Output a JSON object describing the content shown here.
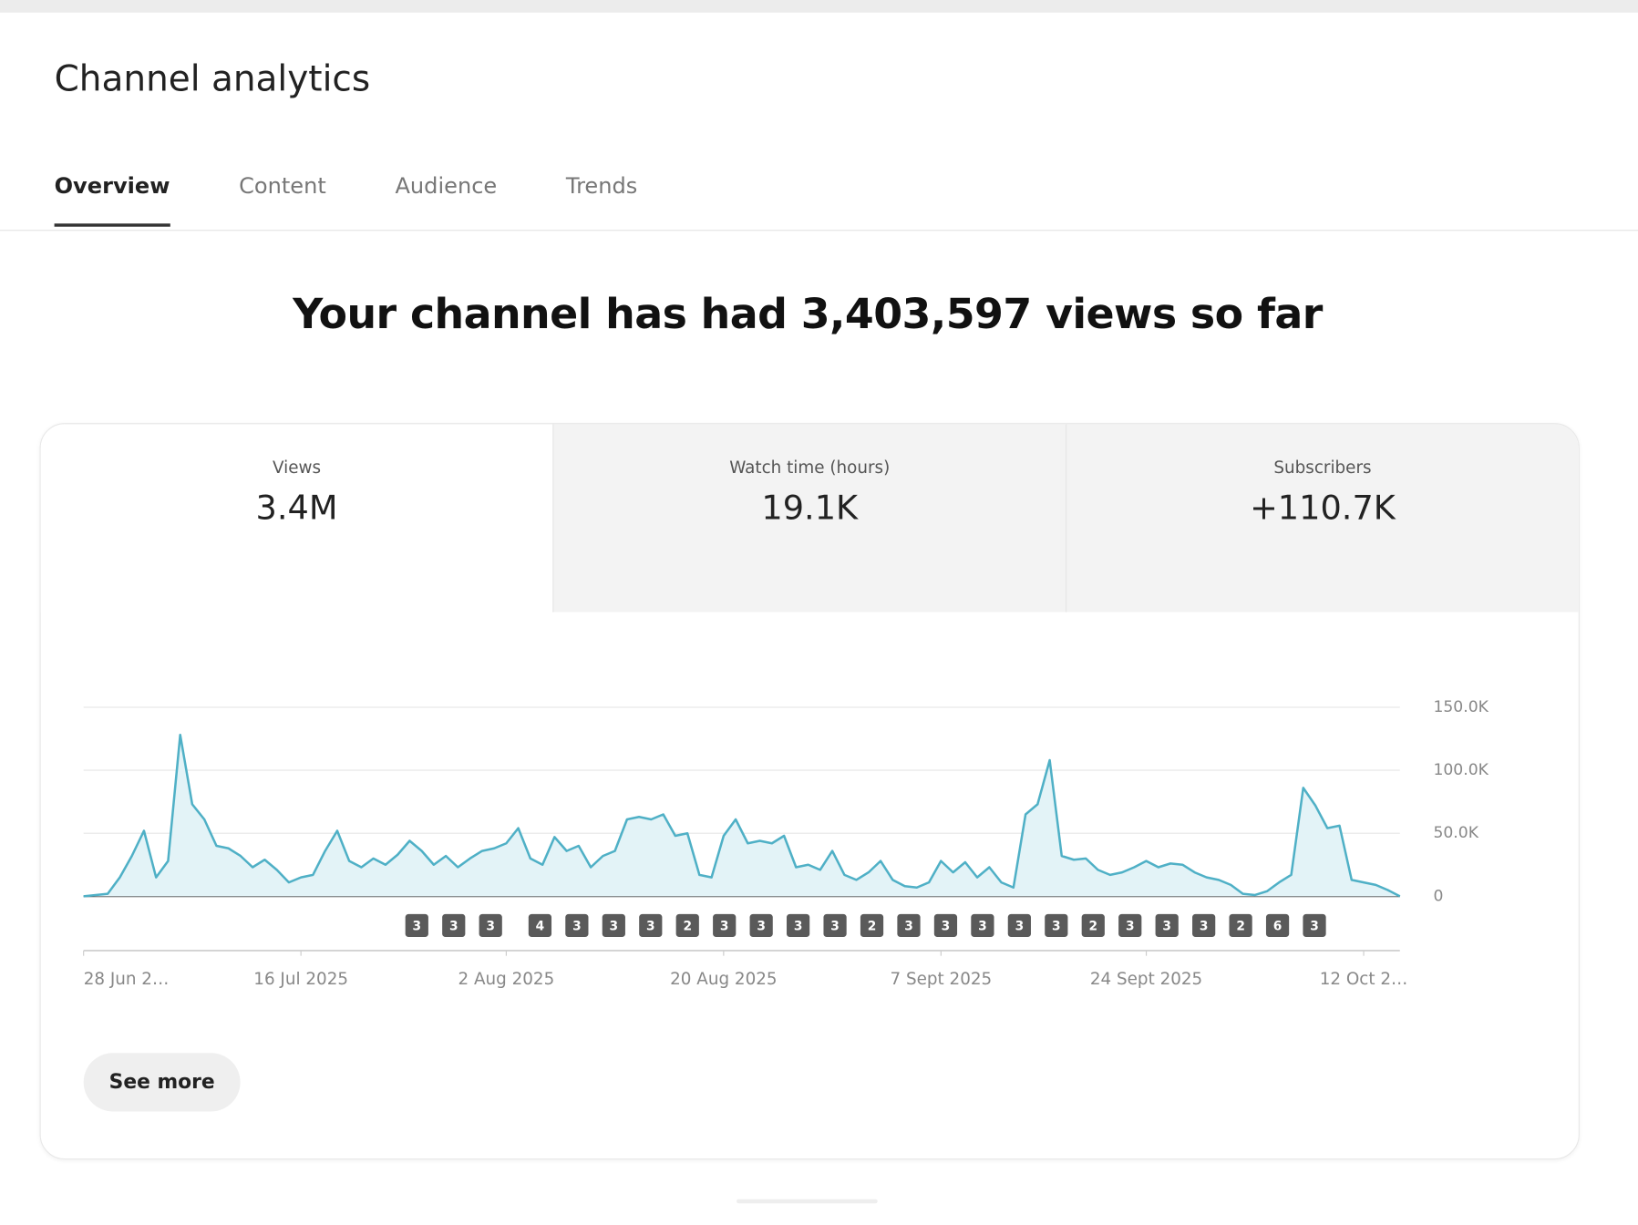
{
  "header": {
    "title": "Channel analytics"
  },
  "tabs": [
    "Overview",
    "Content",
    "Audience",
    "Trends"
  ],
  "active_tab": 0,
  "headline": "Your channel has had 3,403,597 views so far",
  "metrics": [
    {
      "label": "Views",
      "value": "3.4M"
    },
    {
      "label": "Watch time (hours)",
      "value": "19.1K"
    },
    {
      "label": "Subscribers",
      "value": "+110.7K"
    }
  ],
  "chart_data": {
    "type": "line",
    "color": "#4fb0c6",
    "fill": "#e3f3f7",
    "grid": true,
    "categories": [
      "28 Jun 2…",
      null,
      null,
      null,
      null,
      null,
      null,
      null,
      null,
      null,
      null,
      null,
      null,
      null,
      null,
      null,
      null,
      null,
      "16 Jul 2025",
      null,
      null,
      null,
      null,
      null,
      null,
      null,
      null,
      null,
      null,
      null,
      null,
      null,
      null,
      null,
      null,
      "2 Aug 2025",
      null,
      null,
      null,
      null,
      null,
      null,
      null,
      null,
      null,
      null,
      null,
      null,
      null,
      null,
      null,
      null,
      null,
      "20 Aug 2025",
      null,
      null,
      null,
      null,
      null,
      null,
      null,
      null,
      null,
      null,
      null,
      null,
      null,
      null,
      null,
      null,
      null,
      "7 Sept 2025",
      null,
      null,
      null,
      null,
      null,
      null,
      null,
      null,
      null,
      null,
      null,
      null,
      null,
      null,
      null,
      null,
      "24 Sept 2025",
      null,
      null,
      null,
      null,
      null,
      null,
      null,
      null,
      null,
      null,
      null,
      null,
      null,
      null,
      null,
      null,
      null,
      "12 Oct 2…",
      null,
      null,
      null
    ],
    "values": [
      0,
      1000,
      2000,
      15000,
      32000,
      52000,
      15000,
      28000,
      128000,
      73000,
      61000,
      40000,
      38000,
      32000,
      23000,
      29000,
      21000,
      11000,
      15000,
      17000,
      36000,
      52000,
      28000,
      23000,
      30000,
      25000,
      33000,
      44000,
      36000,
      25000,
      32000,
      23000,
      30000,
      36000,
      38000,
      42000,
      54000,
      30000,
      25000,
      47000,
      36000,
      40000,
      23000,
      32000,
      36000,
      61000,
      63000,
      61000,
      65000,
      48000,
      50000,
      17000,
      15000,
      48000,
      61000,
      42000,
      44000,
      42000,
      48000,
      23000,
      25000,
      21000,
      36000,
      17000,
      13000,
      19000,
      28000,
      13000,
      8000,
      7000,
      11000,
      28000,
      19000,
      27000,
      15000,
      23000,
      11000,
      7000,
      65000,
      73000,
      108000,
      32000,
      29000,
      30000,
      21000,
      17000,
      19000,
      23000,
      28000,
      23000,
      26000,
      25000,
      19000,
      15000,
      13000,
      9000,
      2000,
      1000,
      4000,
      11000,
      17000,
      86000,
      72000,
      54000,
      56000,
      13000,
      11000,
      9000,
      5000,
      0
    ],
    "ylim": [
      0,
      150000
    ],
    "yticks": [
      0,
      {
        "value": 50000,
        "label": "50.0K"
      },
      {
        "value": 100000,
        "label": "100.0K"
      },
      {
        "value": 150000,
        "label": "150.0K"
      }
    ],
    "markers": [
      "3",
      "3",
      "3",
      "4",
      "3",
      "3",
      "3",
      "2",
      "3",
      "3",
      "3",
      "3",
      "2",
      "3",
      "3",
      "3",
      "3",
      "3",
      "2",
      "3",
      "3",
      "3",
      "2",
      "6",
      "3"
    ]
  },
  "button": "See more"
}
